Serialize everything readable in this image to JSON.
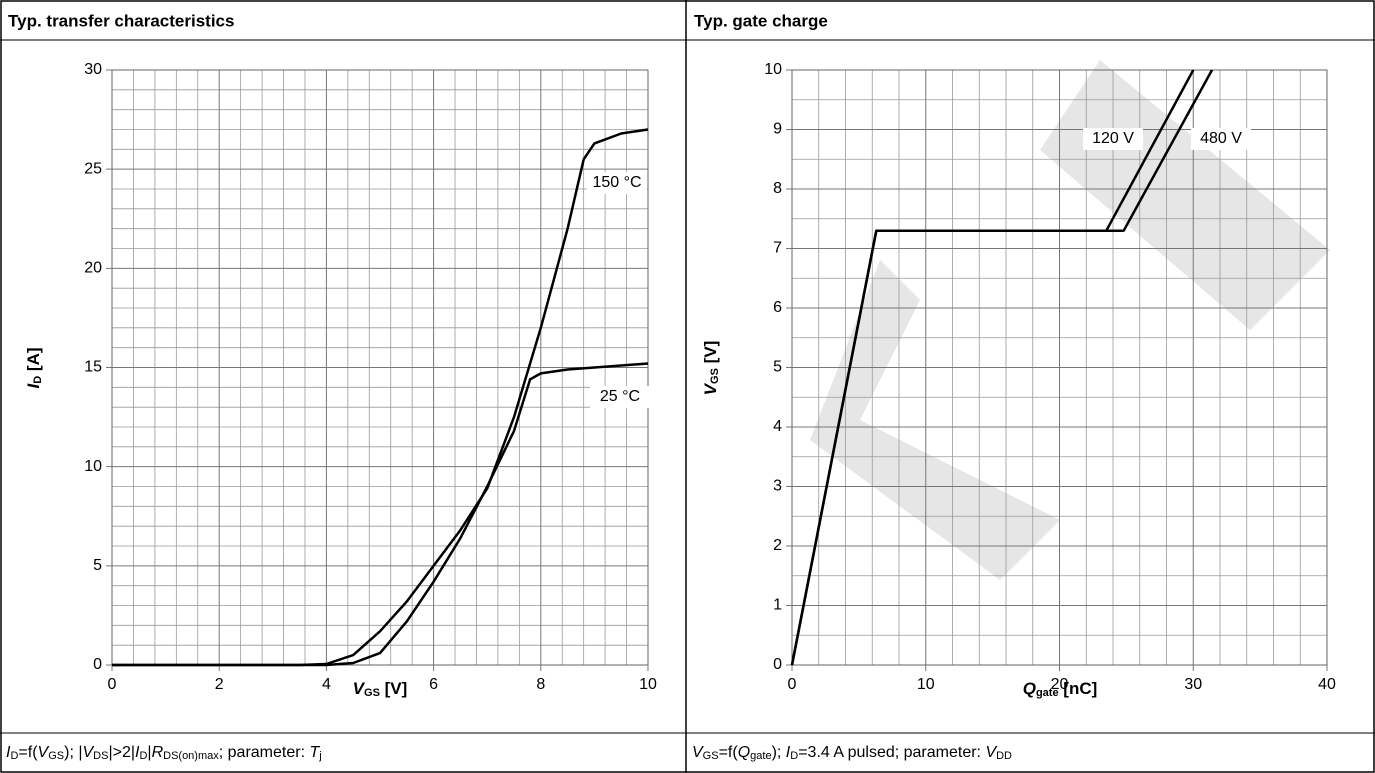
{
  "chart_data": [
    {
      "type": "line",
      "title": "Typ. transfer characteristics",
      "xlabel": [
        "V",
        "GS",
        " [V]"
      ],
      "ylabel": [
        "I",
        "D",
        " [A]"
      ],
      "footnote": [
        "I",
        "D",
        "=f(",
        "V",
        "GS",
        "); |",
        "V",
        "DS",
        "|>2|",
        "I",
        "D",
        "|",
        "R",
        "DS(on)max",
        "; parameter:  ",
        "T",
        "j"
      ],
      "xlim": [
        0,
        10
      ],
      "ylim": [
        0,
        30
      ],
      "xticks": [
        0,
        2,
        4,
        6,
        8,
        10
      ],
      "yticks": [
        0,
        5,
        10,
        15,
        20,
        25,
        30
      ],
      "grid": true,
      "minor_grid": {
        "x": 5,
        "y": 5
      },
      "series": [
        {
          "name": "150 °C",
          "color": "#000000",
          "x": [
            0,
            3.5,
            4,
            4.5,
            5,
            5.5,
            6,
            6.5,
            7,
            7.5,
            8,
            8.5,
            8.8,
            9,
            9.5,
            10
          ],
          "values": [
            0,
            0,
            0.05,
            0.5,
            1.7,
            3.2,
            5,
            6.8,
            8.9,
            12.5,
            17,
            22,
            25.5,
            26.3,
            26.8,
            27
          ]
        },
        {
          "name": "25 °C",
          "color": "#000000",
          "x": [
            0,
            4,
            4.5,
            5,
            5.5,
            6,
            6.5,
            7,
            7.5,
            7.8,
            8,
            8.5,
            9,
            10
          ],
          "values": [
            0,
            0,
            0.1,
            0.6,
            2.2,
            4.2,
            6.4,
            9,
            11.8,
            14.4,
            14.7,
            14.9,
            15,
            15.2
          ]
        }
      ]
    },
    {
      "type": "line",
      "title": "Typ. gate charge",
      "xlabel": [
        "Q",
        "gate",
        " [nC]"
      ],
      "ylabel": [
        "V",
        "GS",
        " [V]"
      ],
      "footnote": [
        "V",
        "GS",
        "=f(",
        "Q",
        "gate",
        "); ",
        "I",
        "D",
        "=3.4 A pulsed; parameter:  ",
        "V",
        "DD"
      ],
      "xlim": [
        0,
        40
      ],
      "ylim": [
        0,
        10
      ],
      "xticks": [
        0,
        10,
        20,
        30,
        40
      ],
      "yticks": [
        0,
        1,
        2,
        3,
        4,
        5,
        6,
        7,
        8,
        9,
        10
      ],
      "grid": true,
      "minor_grid": {
        "x": 5,
        "y": 2
      },
      "series": [
        {
          "name": "120 V",
          "color": "#000000",
          "x": [
            0,
            6.3,
            23.5,
            30
          ],
          "values": [
            0,
            7.3,
            7.3,
            10
          ]
        },
        {
          "name": "480 V",
          "color": "#000000",
          "x": [
            0,
            6.3,
            24.8,
            31.4
          ],
          "values": [
            0,
            7.3,
            7.3,
            10
          ]
        }
      ]
    }
  ]
}
